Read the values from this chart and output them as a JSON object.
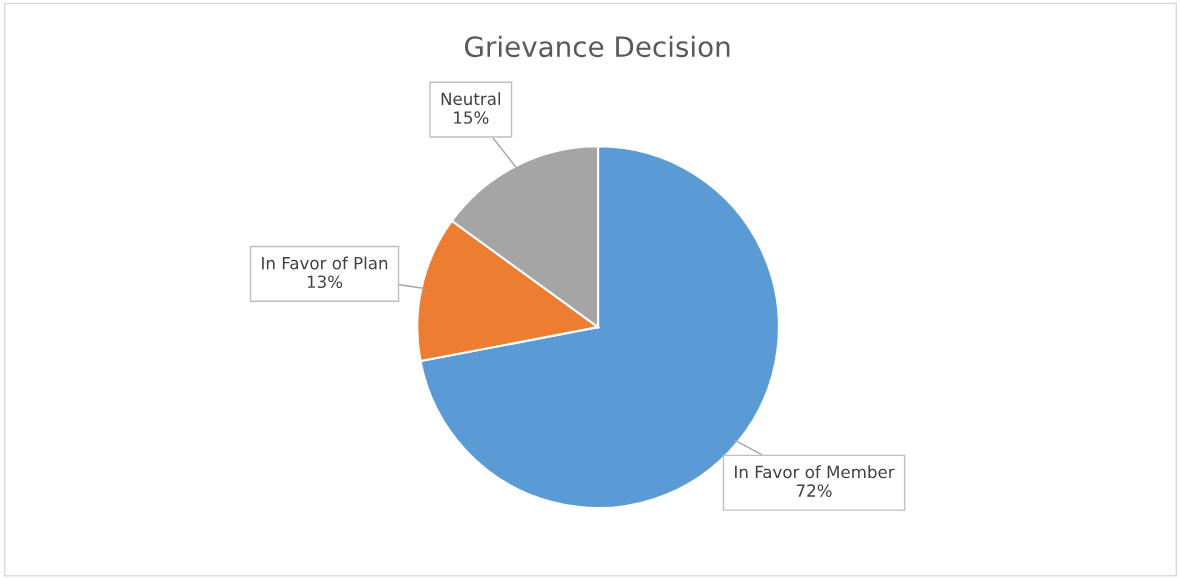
{
  "chart_data": {
    "type": "pie",
    "title": "Grievance Decision",
    "categories": [
      "In Favor of Member",
      "In Favor of Plan",
      "Neutral"
    ],
    "values": [
      72,
      13,
      15
    ],
    "colors": [
      "#5b9bd5",
      "#ed7d31",
      "#a5a5a5"
    ],
    "value_labels": [
      "72%",
      "13%",
      "15%"
    ],
    "legend": false
  }
}
